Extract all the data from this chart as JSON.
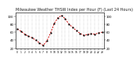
{
  "title": "Milwaukee Weather THSW Index per Hour (F) (Last 24 Hours)",
  "hours": [
    0,
    1,
    2,
    3,
    4,
    5,
    6,
    7,
    8,
    9,
    10,
    11,
    12,
    13,
    14,
    15,
    16,
    17,
    18,
    19,
    20,
    21,
    22,
    23
  ],
  "values": [
    68,
    62,
    55,
    50,
    46,
    40,
    33,
    27,
    38,
    58,
    82,
    96,
    102,
    93,
    80,
    72,
    64,
    57,
    52,
    54,
    56,
    55,
    58,
    60
  ],
  "line_color": "#cc0000",
  "marker_color": "#000000",
  "bg_color": "#ffffff",
  "plot_bg_color": "#ffffff",
  "grid_color": "#aaaaaa",
  "ylim": [
    20,
    110
  ],
  "yticks": [
    20,
    40,
    60,
    80,
    100
  ],
  "title_fontsize": 3.5
}
